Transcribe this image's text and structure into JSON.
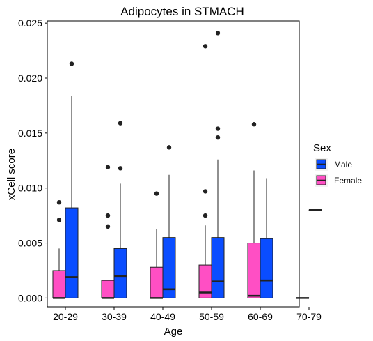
{
  "chart_data": {
    "type": "boxplot",
    "title": "Adipocytes in STMACH",
    "xlabel": "Age",
    "ylabel": "xCell score",
    "ylim": [
      -0.0008,
      0.0252
    ],
    "yticks": [
      "0.000",
      "0.005",
      "0.010",
      "0.015",
      "0.020",
      "0.025"
    ],
    "ytick_values": [
      0,
      0.005,
      0.01,
      0.015,
      0.02,
      0.025
    ],
    "grid": false,
    "legend": {
      "title": "Sex",
      "position": "right",
      "entries": [
        "Male",
        "Female"
      ]
    },
    "categories": [
      "20-29",
      "30-39",
      "40-49",
      "50-59",
      "60-69",
      "70-79"
    ],
    "series": [
      {
        "name": "Male",
        "color": "#0a4dff",
        "boxes": [
          {
            "category": "20-29",
            "whisker_low": 0.0,
            "q1": 0.0,
            "median": 0.0019,
            "q3": 0.0082,
            "whisker_high": 0.0184,
            "outliers": [
              0.0213
            ]
          },
          {
            "category": "30-39",
            "whisker_low": 0.0,
            "q1": 0.0,
            "median": 0.002,
            "q3": 0.0045,
            "whisker_high": 0.0104,
            "outliers": [
              0.0118,
              0.0159
            ]
          },
          {
            "category": "40-49",
            "whisker_low": 0.0,
            "q1": 0.0,
            "median": 0.0008,
            "q3": 0.0055,
            "whisker_high": 0.0112,
            "outliers": [
              0.0137
            ]
          },
          {
            "category": "50-59",
            "whisker_low": 0.0,
            "q1": 0.0,
            "median": 0.0015,
            "q3": 0.0055,
            "whisker_high": 0.0126,
            "outliers": [
              0.0146,
              0.0154,
              0.0241
            ]
          },
          {
            "category": "60-69",
            "whisker_low": 0.0,
            "q1": 0.0,
            "median": 0.0016,
            "q3": 0.0054,
            "whisker_high": 0.0109,
            "outliers": []
          },
          {
            "category": "70-79",
            "whisker_low": 0.008,
            "q1": 0.008,
            "median": 0.008,
            "q3": 0.008,
            "whisker_high": 0.008,
            "outliers": []
          }
        ]
      },
      {
        "name": "Female",
        "color": "#ff4fc4",
        "boxes": [
          {
            "category": "20-29",
            "whisker_low": 0.0,
            "q1": 0.0,
            "median": 0.0,
            "q3": 0.0025,
            "whisker_high": 0.0045,
            "outliers": [
              0.0071,
              0.0087
            ]
          },
          {
            "category": "30-39",
            "whisker_low": 0.0,
            "q1": 0.0,
            "median": 0.0,
            "q3": 0.0016,
            "whisker_high": 0.0016,
            "outliers": [
              0.0065,
              0.0075,
              0.0119
            ]
          },
          {
            "category": "40-49",
            "whisker_low": 0.0,
            "q1": 0.0,
            "median": 0.0,
            "q3": 0.0028,
            "whisker_high": 0.0063,
            "outliers": [
              0.0095
            ]
          },
          {
            "category": "50-59",
            "whisker_low": 0.0,
            "q1": 0.0,
            "median": 0.0005,
            "q3": 0.003,
            "whisker_high": 0.0066,
            "outliers": [
              0.0075,
              0.0097,
              0.0229
            ]
          },
          {
            "category": "60-69",
            "whisker_low": 0.0,
            "q1": 0.0,
            "median": 0.0002,
            "q3": 0.005,
            "whisker_high": 0.0116,
            "outliers": [
              0.0158
            ]
          },
          {
            "category": "70-79",
            "whisker_low": 0.0,
            "q1": 0.0,
            "median": 0.0,
            "q3": 0.0,
            "whisker_high": 0.0,
            "outliers": []
          }
        ]
      }
    ]
  }
}
